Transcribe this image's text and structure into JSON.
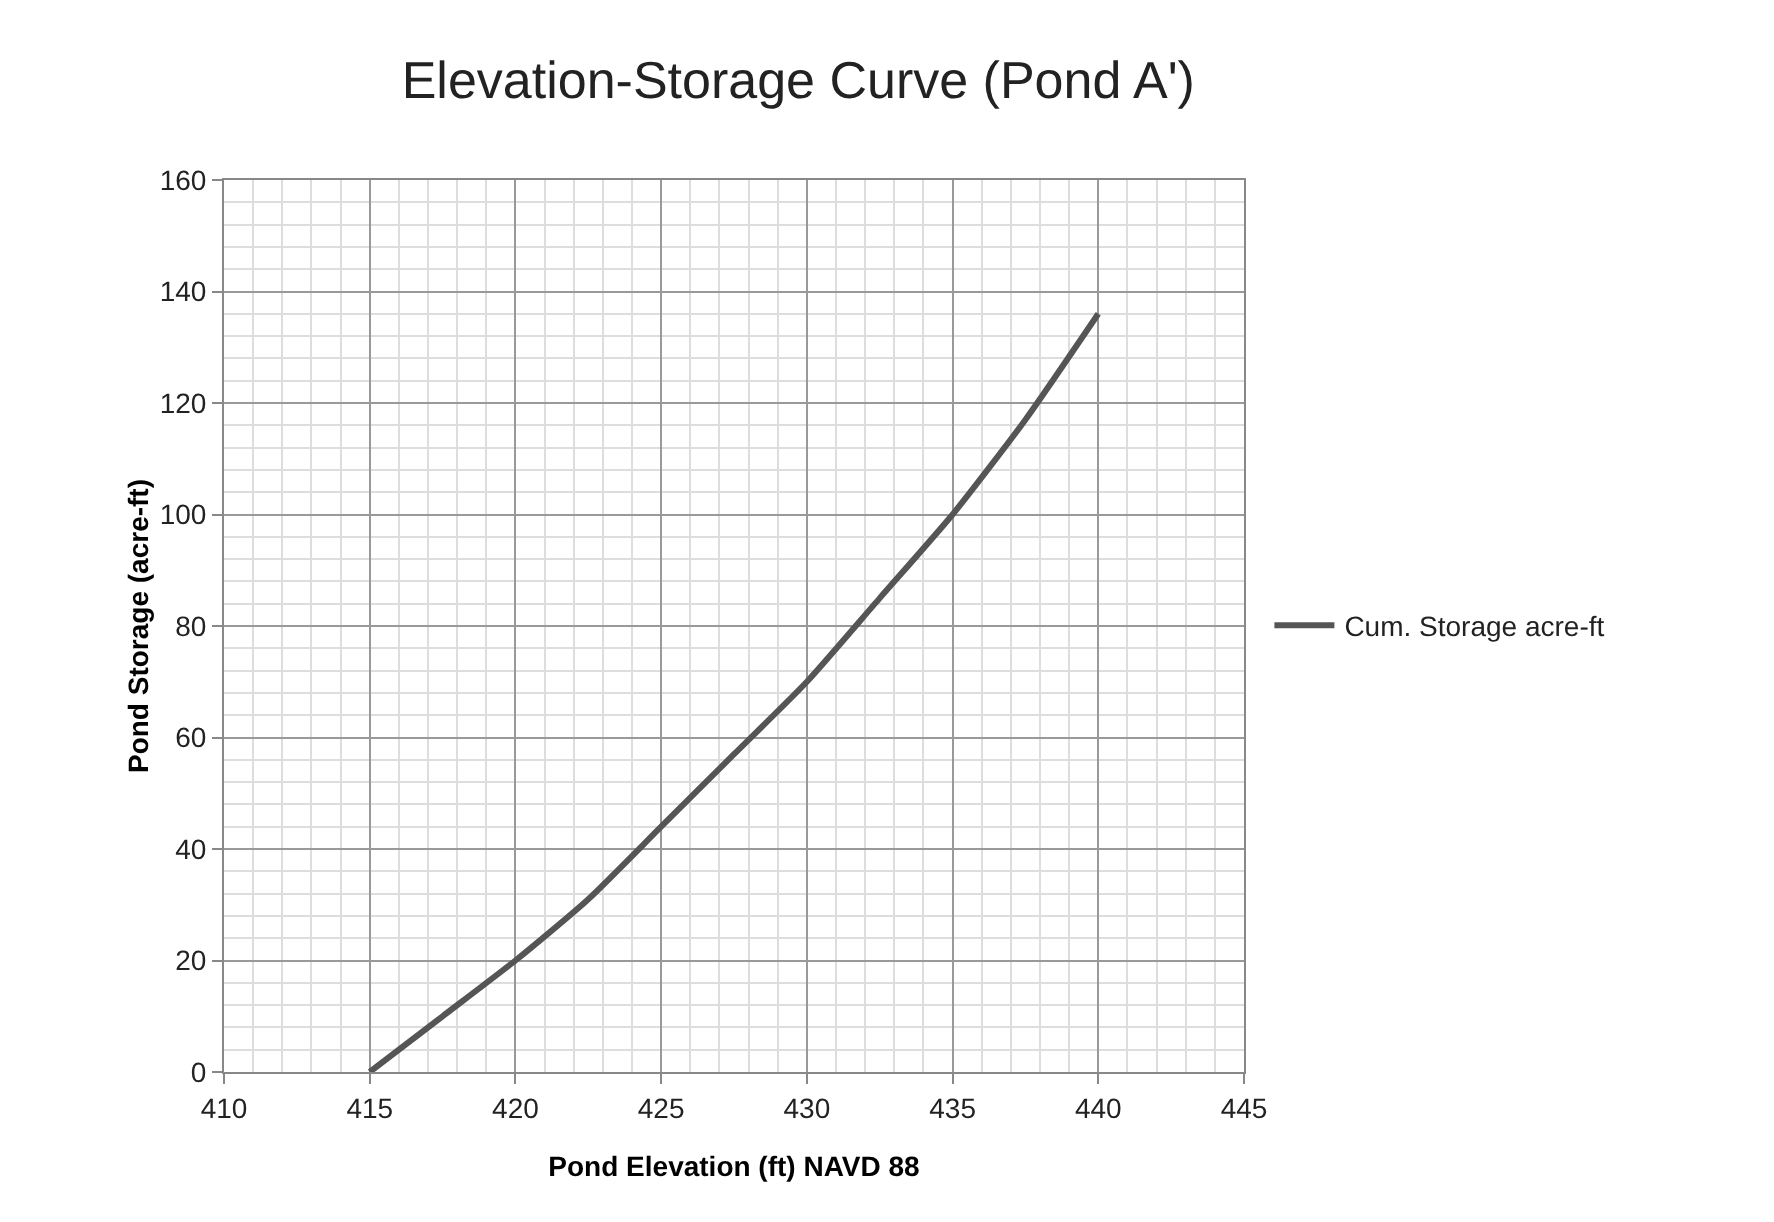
{
  "chart_data": {
    "type": "line",
    "title": "Elevation-Storage Curve (Pond A')",
    "xlabel": "Pond Elevation (ft) NAVD 88",
    "ylabel": "Pond Storage (acre-ft)",
    "x": [
      415,
      417.5,
      420,
      422.5,
      425,
      427.5,
      430,
      432.5,
      435,
      437.5,
      440
    ],
    "series": [
      {
        "name": "Cum. Storage acre-ft",
        "color": "#555555",
        "values": [
          0,
          10,
          20,
          31,
          44,
          57,
          70,
          85,
          100,
          117,
          136
        ]
      }
    ],
    "xlim": [
      410,
      445
    ],
    "xticks": [
      410,
      415,
      420,
      425,
      430,
      435,
      440,
      445
    ],
    "ylim": [
      0,
      160
    ],
    "yticks": [
      0,
      20,
      40,
      60,
      80,
      100,
      120,
      140,
      160
    ],
    "grid": true,
    "legend": "right",
    "marker": "none",
    "line_style": "solid"
  }
}
